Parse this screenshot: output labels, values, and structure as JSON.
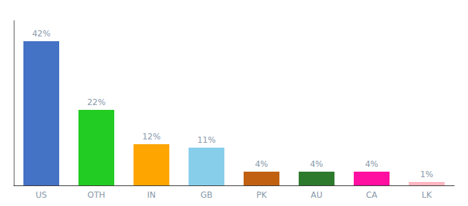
{
  "chart_data": {
    "type": "bar",
    "categories": [
      "US",
      "OTH",
      "IN",
      "GB",
      "PK",
      "AU",
      "CA",
      "LK"
    ],
    "values": [
      42,
      22,
      12,
      11,
      4,
      4,
      4,
      1
    ],
    "value_labels": [
      "42%",
      "22%",
      "12%",
      "11%",
      "4%",
      "4%",
      "4%",
      "1%"
    ],
    "colors": [
      "#4472C4",
      "#22CC22",
      "#FFA500",
      "#87CEEB",
      "#C06010",
      "#2D7A2D",
      "#FF10A0",
      "#FFB6C1"
    ],
    "data_labels": true,
    "ylim": [
      0,
      48
    ],
    "grid": false,
    "tick_labels": "x"
  }
}
